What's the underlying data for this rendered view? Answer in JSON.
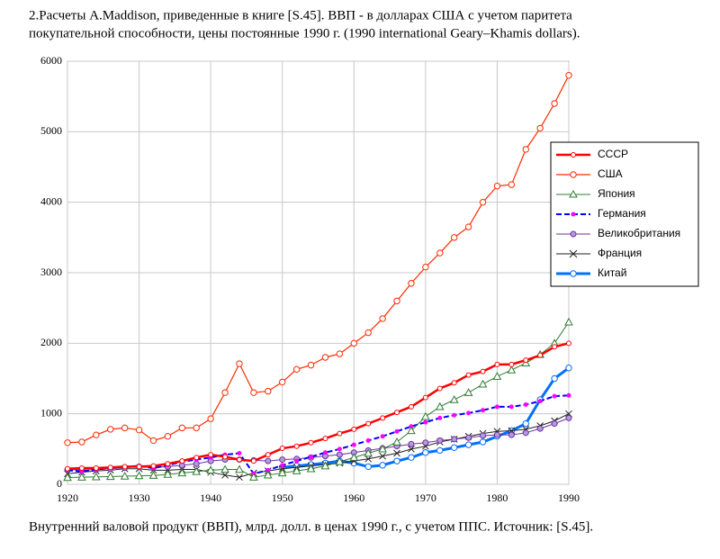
{
  "chart_data": {
    "type": "line",
    "title": [
      "2.Расчеты A.Maddison, приведенные в книге [S.45]. ВВП  - в долларах США с учетом паритета",
      "покупательной способности, цены постоянные 1990 г.  (1990 international Geary–Khamis dollars)."
    ],
    "caption": "Внутренний валовой продукт (ВВП), млрд. долл. в ценах 1990 г., с учетом ППС. Источник: [S.45].",
    "x": [
      1920,
      1922,
      1924,
      1926,
      1928,
      1930,
      1932,
      1934,
      1936,
      1938,
      1940,
      1942,
      1944,
      1946,
      1948,
      1950,
      1952,
      1954,
      1956,
      1958,
      1960,
      1962,
      1964,
      1966,
      1968,
      1970,
      1972,
      1974,
      1976,
      1978,
      1980,
      1982,
      1984,
      1986,
      1988,
      1990
    ],
    "xlim": [
      1920,
      1990
    ],
    "xticks": [
      1920,
      1930,
      1940,
      1950,
      1960,
      1970,
      1980,
      1990
    ],
    "ylim": [
      0,
      6000
    ],
    "yticks": [
      0,
      1000,
      2000,
      3000,
      4000,
      5000,
      6000
    ],
    "grid": true,
    "legend": "right",
    "series": [
      {
        "name": "СССР",
        "color": "#ff0000",
        "values": [
          220,
          230,
          230,
          240,
          250,
          250,
          260,
          290,
          330,
          380,
          420,
          390,
          350,
          330,
          420,
          510,
          540,
          590,
          650,
          720,
          780,
          860,
          940,
          1020,
          1100,
          1230,
          1360,
          1440,
          1550,
          1600,
          1700,
          1700,
          1760,
          1830,
          1950,
          2000
        ]
      },
      {
        "name": "США",
        "color": "#ff2a00",
        "values": [
          590,
          600,
          700,
          780,
          800,
          770,
          620,
          680,
          800,
          800,
          930,
          1300,
          1710,
          1300,
          1320,
          1450,
          1630,
          1690,
          1800,
          1850,
          2000,
          2150,
          2350,
          2600,
          2850,
          3080,
          3280,
          3500,
          3650,
          4000,
          4230,
          4250,
          4750,
          5050,
          5400,
          5800
        ]
      },
      {
        "name": "Япония",
        "color": "#2e7d32",
        "values": [
          95,
          100,
          105,
          110,
          115,
          120,
          125,
          140,
          160,
          180,
          200,
          210,
          210,
          100,
          130,
          160,
          190,
          220,
          260,
          320,
          380,
          440,
          500,
          600,
          760,
          960,
          1100,
          1200,
          1300,
          1420,
          1530,
          1620,
          1720,
          1840,
          2000,
          2300
        ]
      },
      {
        "name": "Германия",
        "color": "#0000ff",
        "values": [
          200,
          180,
          210,
          230,
          250,
          260,
          230,
          270,
          320,
          350,
          380,
          420,
          440,
          150,
          200,
          270,
          330,
          390,
          450,
          500,
          560,
          620,
          680,
          750,
          820,
          880,
          940,
          980,
          1010,
          1050,
          1100,
          1100,
          1130,
          1180,
          1250,
          1260
        ]
      },
      {
        "name": "Великобритания",
        "color": "#7030a0",
        "values": [
          210,
          200,
          210,
          220,
          235,
          250,
          240,
          250,
          270,
          290,
          330,
          350,
          350,
          340,
          330,
          350,
          360,
          380,
          400,
          420,
          450,
          480,
          510,
          540,
          570,
          590,
          620,
          640,
          660,
          690,
          700,
          700,
          730,
          790,
          860,
          940
        ]
      },
      {
        "name": "Франция",
        "color": "#222222",
        "values": [
          150,
          170,
          190,
          200,
          220,
          220,
          200,
          200,
          210,
          210,
          170,
          130,
          100,
          160,
          190,
          220,
          240,
          260,
          280,
          300,
          330,
          360,
          400,
          440,
          500,
          540,
          600,
          640,
          680,
          720,
          750,
          760,
          780,
          830,
          900,
          1000
        ]
      },
      {
        "name": "Китай",
        "color": "#0070ff",
        "values": [
          null,
          null,
          null,
          null,
          null,
          null,
          null,
          null,
          null,
          null,
          null,
          null,
          null,
          null,
          null,
          240,
          260,
          280,
          300,
          330,
          300,
          250,
          270,
          330,
          380,
          450,
          480,
          520,
          560,
          600,
          680,
          760,
          860,
          1200,
          1500,
          1650
        ]
      }
    ]
  }
}
